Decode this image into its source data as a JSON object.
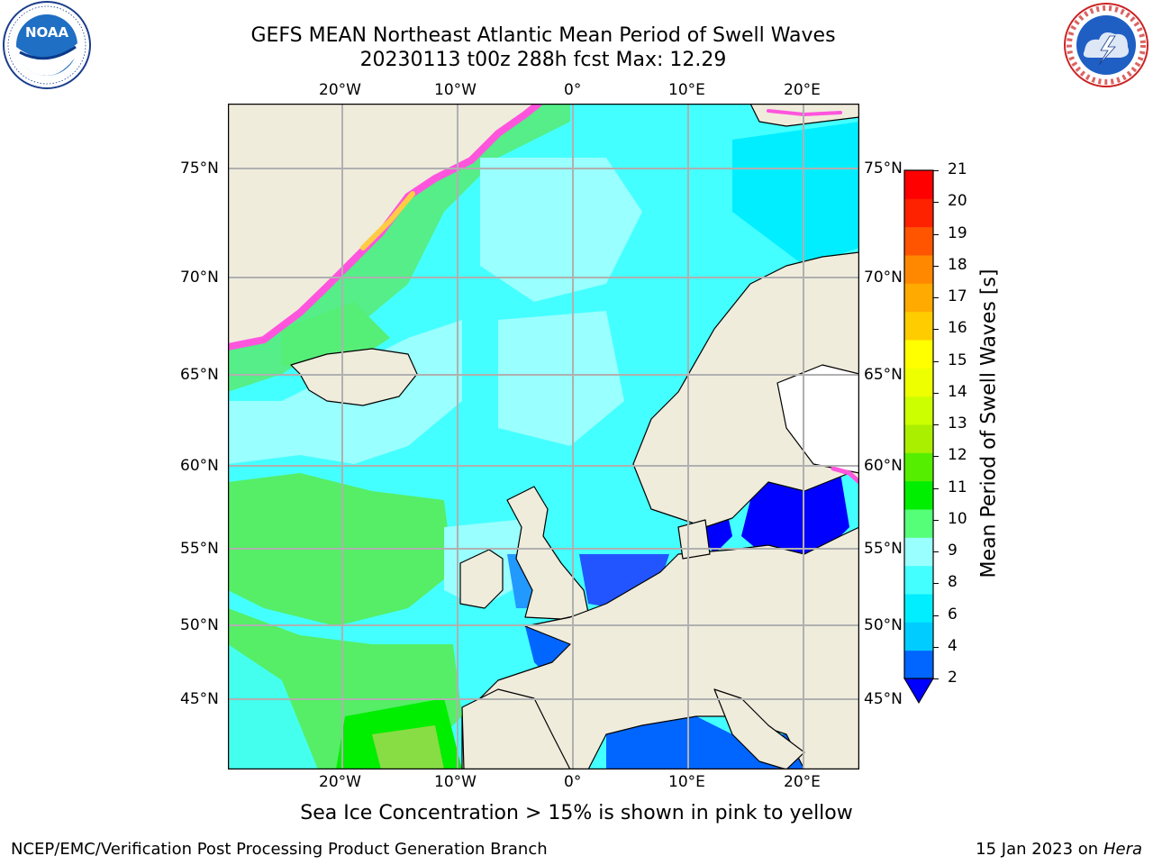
{
  "header": {
    "title_line1": "GEFS MEAN Northeast Atlantic Mean Period of Swell Waves",
    "title_line2": "20230113 t00z 288h fcst   Max: 12.29"
  },
  "logos": {
    "noaa_text": "NOAA",
    "noaa_ring_text": "NATIONAL OCEANIC AND ATMOSPHERIC ADMINISTRATION · U.S. DEPARTMENT OF COMMERCE",
    "nws_ring_text": "NATIONAL WEATHER SERVICE"
  },
  "map": {
    "lon_labels": [
      "20°W",
      "10°W",
      "0°",
      "10°E",
      "20°E"
    ],
    "lat_labels": [
      "75°N",
      "70°N",
      "65°N",
      "60°N",
      "55°N",
      "50°N",
      "45°N"
    ],
    "colors": {
      "land": "#efecdc",
      "grid": "#b0b0b0",
      "coast": "#000000",
      "ice_pink": "#ff55dd",
      "ice_yellow": "#ffcc44"
    }
  },
  "colorbar": {
    "label": "Mean Period of Swell Waves [s]",
    "ticks": [
      "21",
      "20",
      "19",
      "18",
      "17",
      "16",
      "15",
      "14",
      "13",
      "12",
      "11",
      "10",
      "9",
      "8",
      "6",
      "4",
      "2"
    ],
    "colors_bottom_to_top": [
      "#0066ff",
      "#00ccff",
      "#00eeff",
      "#44ffff",
      "#99ffff",
      "#55ff77",
      "#00ee00",
      "#55ee00",
      "#aaee00",
      "#ccff00",
      "#eeff00",
      "#ffff00",
      "#ffcc00",
      "#ffaa00",
      "#ff8800",
      "#ff5500",
      "#ff2200",
      "#ff0000"
    ],
    "underflow_color": "#0000ff"
  },
  "caption": "Sea Ice Concentration > 15% is shown in pink to yellow",
  "footer": {
    "left": "NCEP/EMC/Verification Post Processing Product Generation Branch",
    "right_prefix": "15 Jan 2023 on ",
    "right_host": "Hera"
  }
}
